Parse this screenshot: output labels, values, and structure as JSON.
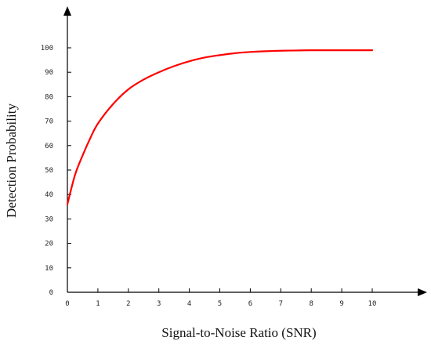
{
  "chart_data": {
    "type": "line",
    "title": "",
    "xlabel": "Signal-to-Noise Ratio (SNR)",
    "ylabel": "Detection Probability",
    "xlim": [
      0,
      10
    ],
    "ylim": [
      0,
      100
    ],
    "x_ticks": [
      0,
      1,
      2,
      3,
      4,
      5,
      6,
      7,
      8,
      9,
      10
    ],
    "y_ticks": [
      0,
      10,
      20,
      30,
      40,
      50,
      60,
      70,
      80,
      90,
      100
    ],
    "grid": false,
    "legend": "none",
    "series": [
      {
        "color": "#ff0000",
        "x": [
          0,
          0.25,
          0.5,
          0.75,
          1,
          1.5,
          2,
          2.5,
          3,
          3.5,
          4,
          4.5,
          5,
          5.5,
          6,
          6.5,
          7,
          7.5,
          8,
          8.5,
          9,
          9.5,
          10
        ],
        "y": [
          36,
          48,
          56,
          63,
          69,
          77,
          83,
          87,
          90,
          92.5,
          94.5,
          96,
          97,
          97.8,
          98.3,
          98.6,
          98.8,
          98.9,
          99,
          99,
          99,
          99,
          99
        ]
      }
    ]
  }
}
